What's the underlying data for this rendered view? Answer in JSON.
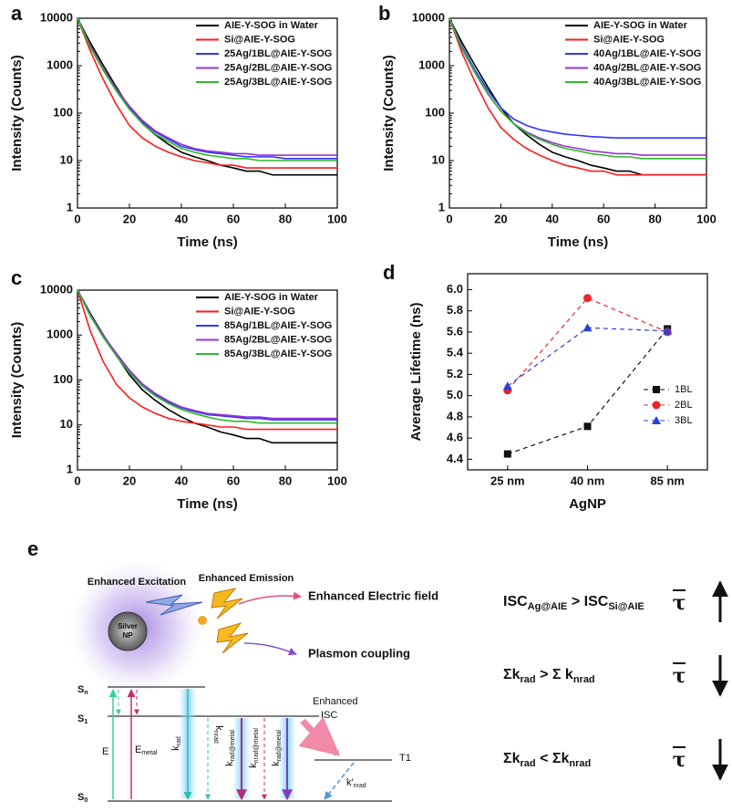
{
  "chart_data": [
    {
      "type": "line",
      "label": "a",
      "xlabel": "Time (ns)",
      "ylabel": "Intensity (Counts)",
      "log_y": true,
      "legend": "upper right",
      "xlim": [
        0,
        100
      ],
      "xticks": [
        0,
        20,
        40,
        60,
        80,
        100
      ],
      "ylim": [
        1,
        10000
      ],
      "yticks": [
        1,
        10,
        100,
        1000,
        10000
      ],
      "x": [
        0,
        5,
        10,
        15,
        20,
        25,
        30,
        35,
        40,
        45,
        50,
        55,
        60,
        65,
        70,
        75,
        80,
        85,
        90,
        95,
        100
      ],
      "series": [
        {
          "name": "AIE-Y-SOG in Water",
          "color": "#000000",
          "values": [
            10000,
            3000,
            1000,
            350,
            130,
            60,
            35,
            22,
            15,
            12,
            10,
            8,
            7,
            6,
            6,
            5,
            5,
            5,
            5,
            5,
            5
          ]
        },
        {
          "name": "Si@AIE-Y-SOG",
          "color": "#ff1a1a",
          "values": [
            10000,
            2000,
            500,
            150,
            55,
            30,
            20,
            15,
            12,
            10,
            9,
            8,
            8,
            7,
            7,
            7,
            7,
            7,
            7,
            7,
            7
          ]
        },
        {
          "name": "25Ag/1BL@AIE-Y-SOG",
          "color": "#3333ff",
          "values": [
            10000,
            2500,
            800,
            300,
            130,
            65,
            40,
            28,
            20,
            17,
            15,
            14,
            13,
            12,
            12,
            12,
            11,
            11,
            11,
            11,
            11
          ]
        },
        {
          "name": "25Ag/2BL@AIE-Y-SOG",
          "color": "#9933cc",
          "values": [
            10000,
            2600,
            850,
            320,
            140,
            70,
            42,
            30,
            22,
            18,
            16,
            15,
            14,
            14,
            13,
            13,
            13,
            13,
            13,
            13,
            13
          ]
        },
        {
          "name": "25Ag/3BL@AIE-Y-SOG",
          "color": "#2db82d",
          "values": [
            10000,
            2400,
            780,
            290,
            120,
            60,
            36,
            25,
            18,
            15,
            13,
            12,
            11,
            11,
            10,
            10,
            10,
            10,
            10,
            10,
            10
          ]
        }
      ]
    },
    {
      "type": "line",
      "label": "b",
      "xlabel": "Time (ns)",
      "ylabel": "Intensity (Counts)",
      "log_y": true,
      "legend": "upper right",
      "xlim": [
        0,
        100
      ],
      "xticks": [
        0,
        20,
        40,
        60,
        80,
        100
      ],
      "ylim": [
        1,
        10000
      ],
      "yticks": [
        1,
        10,
        100,
        1000,
        10000
      ],
      "x": [
        0,
        5,
        10,
        15,
        20,
        25,
        30,
        35,
        40,
        45,
        50,
        55,
        60,
        65,
        70,
        75,
        80,
        85,
        90,
        95,
        100
      ],
      "series": [
        {
          "name": "AIE-Y-SOG in Water",
          "color": "#000000",
          "values": [
            10000,
            3000,
            1000,
            350,
            130,
            60,
            35,
            22,
            15,
            12,
            10,
            8,
            7,
            6,
            6,
            5,
            5,
            5,
            5,
            5,
            5
          ]
        },
        {
          "name": "Si@AIE-Y-SOG",
          "color": "#ff1a1a",
          "values": [
            10000,
            1800,
            450,
            130,
            50,
            28,
            18,
            13,
            10,
            8,
            7,
            6,
            6,
            5,
            5,
            5,
            5,
            5,
            5,
            5,
            5
          ]
        },
        {
          "name": "40Ag/1BL@AIE-Y-SOG",
          "color": "#3333ff",
          "values": [
            10000,
            2500,
            800,
            300,
            130,
            75,
            55,
            45,
            40,
            36,
            34,
            32,
            31,
            30,
            30,
            30,
            30,
            30,
            30,
            30,
            30
          ]
        },
        {
          "name": "40Ag/2BL@AIE-Y-SOG",
          "color": "#9933cc",
          "values": [
            10000,
            2200,
            700,
            250,
            110,
            60,
            40,
            30,
            24,
            20,
            18,
            16,
            15,
            14,
            14,
            13,
            13,
            13,
            13,
            13,
            13
          ]
        },
        {
          "name": "40Ag/3BL@AIE-Y-SOG",
          "color": "#2db82d",
          "values": [
            10000,
            2300,
            720,
            260,
            110,
            60,
            38,
            28,
            22,
            18,
            16,
            14,
            13,
            12,
            12,
            11,
            11,
            11,
            11,
            11,
            11
          ]
        }
      ]
    },
    {
      "type": "line",
      "label": "c",
      "xlabel": "Time (ns)",
      "ylabel": "Intensity (Counts)",
      "log_y": true,
      "legend": "upper right",
      "xlim": [
        0,
        100
      ],
      "xticks": [
        0,
        20,
        40,
        60,
        80,
        100
      ],
      "ylim": [
        1,
        10000
      ],
      "yticks": [
        1,
        10,
        100,
        1000,
        10000
      ],
      "x": [
        0,
        5,
        10,
        15,
        20,
        25,
        30,
        35,
        40,
        45,
        50,
        55,
        60,
        65,
        70,
        75,
        80,
        85,
        90,
        95,
        100
      ],
      "series": [
        {
          "name": "AIE-Y-SOG in Water",
          "color": "#000000",
          "values": [
            10000,
            3000,
            1000,
            350,
            130,
            60,
            35,
            22,
            15,
            11,
            9,
            7,
            6,
            5,
            5,
            4,
            4,
            4,
            4,
            4,
            4
          ]
        },
        {
          "name": "Si@AIE-Y-SOG",
          "color": "#ff1a1a",
          "values": [
            10000,
            1200,
            250,
            80,
            40,
            25,
            18,
            14,
            12,
            11,
            10,
            9,
            9,
            8,
            8,
            8,
            8,
            8,
            8,
            8,
            8
          ]
        },
        {
          "name": "85Ag/1BL@AIE-Y-SOG",
          "color": "#3333ff",
          "values": [
            10000,
            2800,
            950,
            380,
            160,
            80,
            48,
            32,
            24,
            20,
            17,
            16,
            15,
            14,
            14,
            13,
            13,
            13,
            13,
            13,
            13
          ]
        },
        {
          "name": "85Ag/2BL@AIE-Y-SOG",
          "color": "#9933cc",
          "values": [
            10000,
            2800,
            970,
            390,
            165,
            82,
            50,
            34,
            25,
            21,
            18,
            17,
            16,
            15,
            15,
            14,
            14,
            14,
            14,
            14,
            14
          ]
        },
        {
          "name": "85Ag/3BL@AIE-Y-SOG",
          "color": "#2db82d",
          "values": [
            10000,
            2600,
            880,
            340,
            145,
            72,
            44,
            30,
            22,
            18,
            15,
            13,
            12,
            12,
            11,
            11,
            11,
            11,
            11,
            11,
            11
          ]
        }
      ]
    },
    {
      "type": "line",
      "label": "d",
      "xlabel": "AgNP",
      "ylabel": "Average Lifetime (ns)",
      "legend": "lower right",
      "linestyle": "dashed",
      "categories": [
        "25 nm",
        "40 nm",
        "85 nm"
      ],
      "ylim": [
        4.3,
        6.15
      ],
      "yticks": [
        4.4,
        4.6,
        4.8,
        {
          "value": 5,
          "label": "5.0"
        },
        5.2,
        5.4,
        5.6,
        5.8,
        {
          "value": 6,
          "label": "6.0"
        }
      ],
      "series": [
        {
          "name": "1BL",
          "color": "#111111",
          "marker": "square",
          "values": [
            4.45,
            4.71,
            5.63
          ]
        },
        {
          "name": "2BL",
          "color": "#e8262b",
          "marker": "circle",
          "values": [
            5.05,
            5.92,
            5.6
          ]
        },
        {
          "name": "3BL",
          "color": "#2d3fd8",
          "marker": "triangle",
          "values": [
            5.09,
            5.64,
            5.61
          ]
        }
      ]
    }
  ],
  "diagram": {
    "label": "e",
    "excitation": "Enhanced Excitation",
    "emission": "Enhanced Emission",
    "np": [
      "Silver",
      "NP"
    ],
    "field": "Enhanced Electric field",
    "coupling": "Plasmon coupling",
    "levels": {
      "sn": [
        "S",
        "n"
      ],
      "s1": [
        "S",
        "1"
      ],
      "s0": [
        "S",
        "0"
      ],
      "t1": "T1"
    },
    "transitions": {
      "e": "E",
      "emetal": [
        "E",
        "metal"
      ],
      "krad": [
        "k",
        "rad"
      ],
      "knrad": [
        "k",
        "nrad"
      ],
      "kradm1": [
        "k",
        "rad@metal"
      ],
      "knradm": [
        "k",
        "nrad@metal"
      ],
      "kradm2": [
        "k",
        "rad@metal"
      ],
      "kpnrad": [
        "k'",
        "nrad"
      ]
    },
    "isc": [
      "Enhanced",
      "ISC"
    ],
    "equations": [
      {
        "parts": [
          {
            "text": "ISC"
          },
          {
            "text": "Ag@AIE",
            "sub": true
          },
          {
            "text": " > ISC"
          },
          {
            "text": "Si@AIE",
            "sub": true
          }
        ],
        "symbol": "τ",
        "arrow": "up"
      },
      {
        "parts": [
          {
            "text": "Σk"
          },
          {
            "text": "rad",
            "sub": true
          },
          {
            "text": " > Σ k"
          },
          {
            "text": "nrad",
            "sub": true
          }
        ],
        "symbol": "τ",
        "arrow": "down"
      },
      {
        "parts": [
          {
            "text": "Σk"
          },
          {
            "text": "rad",
            "sub": true
          },
          {
            "text": " < Σk"
          },
          {
            "text": "nrad",
            "sub": true
          }
        ],
        "symbol": "τ",
        "arrow": "down"
      }
    ]
  }
}
